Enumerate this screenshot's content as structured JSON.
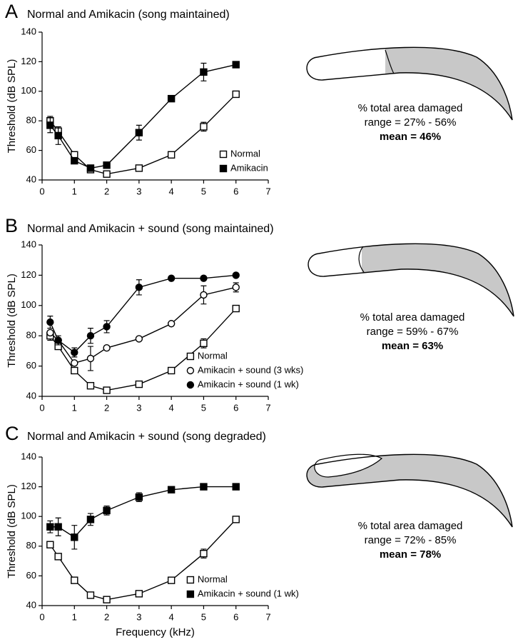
{
  "chart_data": [
    {
      "type": "line",
      "panel": "A",
      "title": "Normal and Amikacin (song maintained)",
      "ylabel": "Threshold (dB SPL)",
      "x": [
        0.25,
        0.5,
        1,
        1.5,
        2,
        3,
        4,
        5,
        6
      ],
      "xlim": [
        0,
        7
      ],
      "xticks": [
        0,
        1,
        2,
        3,
        4,
        5,
        6,
        7
      ],
      "ylim": [
        40,
        140
      ],
      "yticks": [
        40,
        60,
        80,
        100,
        120,
        140
      ],
      "legend": "lower right",
      "series": [
        {
          "name": "Normal",
          "marker": "square",
          "filled": false,
          "color": "#000000",
          "values": [
            80,
            73,
            57,
            47,
            44,
            48,
            57,
            76,
            98
          ],
          "errors": [
            3,
            2,
            null,
            null,
            null,
            null,
            null,
            3,
            null
          ]
        },
        {
          "name": "Amikacin",
          "marker": "square",
          "filled": true,
          "color": "#000000",
          "values": [
            77,
            70,
            53,
            48,
            50,
            72,
            95,
            113,
            118
          ],
          "errors": [
            5,
            6,
            null,
            null,
            null,
            5,
            null,
            6,
            null
          ]
        }
      ],
      "annotations": [
        "% total area damaged",
        "range = 27% - 56%",
        "mean = 46%"
      ]
    },
    {
      "type": "line",
      "panel": "B",
      "title": "Normal and Amikacin + sound (song maintained)",
      "ylabel": "Threshold (dB SPL)",
      "x": [
        0.25,
        0.5,
        1,
        1.5,
        2,
        3,
        4,
        5,
        6
      ],
      "xlim": [
        0,
        7
      ],
      "xticks": [
        0,
        1,
        2,
        3,
        4,
        5,
        6,
        7
      ],
      "ylim": [
        40,
        140
      ],
      "yticks": [
        40,
        60,
        80,
        100,
        120,
        140
      ],
      "legend": "lower right",
      "series": [
        {
          "name": "Normal",
          "marker": "square",
          "filled": false,
          "color": "#000000",
          "values": [
            80,
            73,
            57,
            47,
            44,
            48,
            57,
            75,
            98
          ],
          "errors": [
            3,
            2,
            null,
            null,
            null,
            null,
            null,
            3,
            null
          ]
        },
        {
          "name": "Amikacin + sound (3 wks)",
          "marker": "circle",
          "filled": false,
          "color": "#000000",
          "values": [
            82,
            77,
            62,
            65,
            72,
            78,
            88,
            107,
            112
          ],
          "errors": [
            null,
            null,
            null,
            8,
            null,
            null,
            null,
            6,
            3
          ]
        },
        {
          "name": "Amikacin + sound (1 wk)",
          "marker": "circle",
          "filled": true,
          "color": "#000000",
          "values": [
            89,
            77,
            69,
            80,
            86,
            112,
            118,
            118,
            120
          ],
          "errors": [
            4,
            3,
            3,
            5,
            4,
            5,
            null,
            null,
            null
          ]
        }
      ],
      "annotations": [
        "% total area damaged",
        "range = 59% - 67%",
        "mean = 63%"
      ]
    },
    {
      "type": "line",
      "panel": "C",
      "title": "Normal and Amikacin + sound (song degraded)",
      "ylabel": "Threshold (dB SPL)",
      "xlabel": "Frequency (kHz)",
      "x": [
        0.25,
        0.5,
        1,
        1.5,
        2,
        3,
        4,
        5,
        6
      ],
      "xlim": [
        0,
        7
      ],
      "xticks": [
        0,
        1,
        2,
        3,
        4,
        5,
        6,
        7
      ],
      "ylim": [
        40,
        140
      ],
      "yticks": [
        40,
        60,
        80,
        100,
        120,
        140
      ],
      "legend": "lower right",
      "series": [
        {
          "name": "Normal",
          "marker": "square",
          "filled": false,
          "color": "#000000",
          "values": [
            81,
            73,
            57,
            47,
            44,
            48,
            57,
            75,
            98
          ],
          "errors": [
            2,
            2,
            null,
            null,
            null,
            null,
            null,
            3,
            null
          ]
        },
        {
          "name": "Amikacin + sound (1 wk)",
          "marker": "square",
          "filled": true,
          "color": "#000000",
          "values": [
            93,
            93,
            86,
            98,
            104,
            113,
            118,
            120,
            120
          ],
          "errors": [
            4,
            6,
            8,
            4,
            3,
            3,
            null,
            null,
            null
          ]
        }
      ],
      "annotations": [
        "% total area damaged",
        "range = 72% - 85%",
        "mean = 78%"
      ]
    }
  ]
}
